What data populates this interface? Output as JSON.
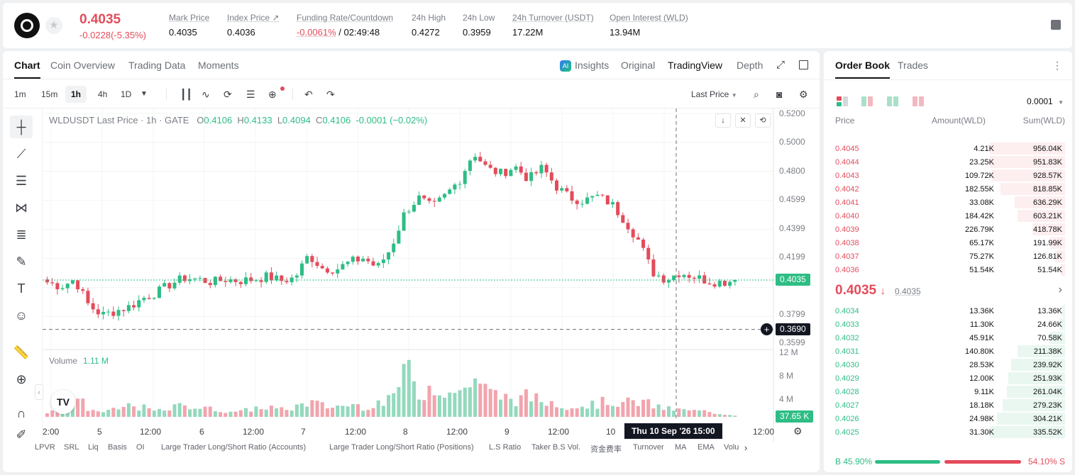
{
  "ticker": {
    "last_price": "0.4035",
    "change": "-0.0228(-5.35%)",
    "stats": [
      {
        "label": "Mark Price",
        "value": "0.4035"
      },
      {
        "label": "Index Price ↗",
        "value": "0.4036"
      },
      {
        "label": "Funding Rate/Countdown",
        "value_red": "-0.0061%",
        "value": " / 02:49:48"
      },
      {
        "label": "24h High",
        "value": "0.4272"
      },
      {
        "label": "24h Low",
        "value": "0.3959"
      },
      {
        "label": "24h Turnover (USDT)",
        "value": "17.22M"
      },
      {
        "label": "Open Interest (WLD)",
        "value": "13.94M"
      }
    ]
  },
  "chart_tabs": {
    "left": [
      "Chart",
      "Coin Overview",
      "Trading Data",
      "Moments"
    ],
    "right": [
      "Insights",
      "Original",
      "TradingView",
      "Depth"
    ],
    "ai_badge": "AI"
  },
  "toolbar": {
    "timeframes": [
      "1m",
      "15m",
      "1h",
      "4h",
      "1D"
    ],
    "active_timeframe": "1h",
    "price_type": "Last Price"
  },
  "chart_legend": {
    "symbol": "WLDUSDT Last Price · 1h · GATE",
    "o_label": "O",
    "o": "0.4106",
    "h_label": "H",
    "h": "0.4133",
    "l_label": "L",
    "l": "0.4094",
    "c_label": "C",
    "c": "0.4106",
    "change": "-0.0001 (−0.02%)",
    "volume_label": "Volume",
    "volume_value": "1.11 M"
  },
  "chart_data": {
    "type": "candlestick",
    "symbol": "WLDUSDT",
    "interval": "1h",
    "price_axis_ticks": [
      "0.5200",
      "0.5000",
      "0.4800",
      "0.4599",
      "0.4399",
      "0.4199",
      "0.3799",
      "0.3599"
    ],
    "volume_axis_ticks": [
      "12 M",
      "8 M",
      "4 M"
    ],
    "ylim": [
      0.3599,
      0.52
    ],
    "current_price": "0.4035",
    "crosshair_price": "0.3690",
    "crosshair_time": "Thu 10 Sep '26   15:00",
    "current_volume": "37.65 K",
    "x_ticks": [
      "2:00",
      "5",
      "12:00",
      "6",
      "12:00",
      "7",
      "12:00",
      "8",
      "12:00",
      "9",
      "12:00",
      "10",
      "12:00"
    ],
    "close_path": [
      0.402,
      0.399,
      0.404,
      0.386,
      0.379,
      0.382,
      0.385,
      0.391,
      0.395,
      0.401,
      0.405,
      0.404,
      0.402,
      0.404,
      0.403,
      0.404,
      0.406,
      0.403,
      0.405,
      0.421,
      0.412,
      0.411,
      0.416,
      0.419,
      0.412,
      0.426,
      0.451,
      0.461,
      0.454,
      0.463,
      0.474,
      0.493,
      0.481,
      0.478,
      0.483,
      0.474,
      0.482,
      0.469,
      0.461,
      0.459,
      0.462,
      0.457,
      0.445,
      0.431,
      0.409,
      0.404,
      0.409,
      0.406,
      0.403,
      0.402,
      0.4035
    ],
    "volume_path": [
      1.1,
      0.8,
      4.2,
      1.5,
      0.9,
      1.3,
      2.2,
      1.7,
      1.0,
      1.6,
      2.3,
      1.8,
      1.4,
      1.2,
      0.9,
      1.6,
      1.9,
      1.3,
      1.8,
      2.8,
      2.1,
      1.9,
      2.4,
      1.9,
      2.7,
      3.0,
      9.5,
      4.0,
      6.2,
      5.1,
      4.4,
      7.8,
      4.6,
      3.9,
      3.2,
      3.9,
      2.9,
      2.7,
      2.0,
      2.1,
      2.5,
      3.0,
      2.6,
      2.9,
      2.2,
      1.5,
      1.3,
      1.1,
      1.0,
      0.6,
      0.3
    ],
    "grid": true
  },
  "indicator_tabs": [
    "LPVR",
    "SRL",
    "Liq",
    "Basis",
    "OI",
    "Large Trader Long/Short Ratio (Accounts)",
    "Large Trader Long/Short Ratio (Positions)",
    "L.S Ratio",
    "Taker B.S Vol.",
    "资金费率",
    "Turnover",
    "MA",
    "EMA",
    "Volu"
  ],
  "orderbook": {
    "tabs": [
      "Order Book",
      "Trades"
    ],
    "precision": "0.0001",
    "headers": [
      "Price",
      "Amount(WLD)",
      "Sum(WLD)"
    ],
    "asks": [
      {
        "price": "0.4045",
        "amount": "4.21K",
        "sum": "956.04K",
        "depth": 1.0
      },
      {
        "price": "0.4044",
        "amount": "23.25K",
        "sum": "951.83K",
        "depth": 0.996
      },
      {
        "price": "0.4043",
        "amount": "109.72K",
        "sum": "928.57K",
        "depth": 0.971
      },
      {
        "price": "0.4042",
        "amount": "182.55K",
        "sum": "818.85K",
        "depth": 0.857
      },
      {
        "price": "0.4041",
        "amount": "33.08K",
        "sum": "636.29K",
        "depth": 0.666
      },
      {
        "price": "0.4040",
        "amount": "184.42K",
        "sum": "603.21K",
        "depth": 0.631
      },
      {
        "price": "0.4039",
        "amount": "226.79K",
        "sum": "418.78K",
        "depth": 0.438
      },
      {
        "price": "0.4038",
        "amount": "65.17K",
        "sum": "191.99K",
        "depth": 0.201
      },
      {
        "price": "0.4037",
        "amount": "75.27K",
        "sum": "126.81K",
        "depth": 0.133
      },
      {
        "price": "0.4036",
        "amount": "51.54K",
        "sum": "51.54K",
        "depth": 0.054
      }
    ],
    "mid_price": "0.4035",
    "mid_arrow": "↓",
    "mark_price": "0.4035",
    "bids": [
      {
        "price": "0.4034",
        "amount": "13.36K",
        "sum": "13.36K",
        "depth": 0.04
      },
      {
        "price": "0.4033",
        "amount": "11.30K",
        "sum": "24.66K",
        "depth": 0.073
      },
      {
        "price": "0.4032",
        "amount": "45.91K",
        "sum": "70.58K",
        "depth": 0.21
      },
      {
        "price": "0.4031",
        "amount": "140.80K",
        "sum": "211.38K",
        "depth": 0.63
      },
      {
        "price": "0.4030",
        "amount": "28.53K",
        "sum": "239.92K",
        "depth": 0.715
      },
      {
        "price": "0.4029",
        "amount": "12.00K",
        "sum": "251.93K",
        "depth": 0.751
      },
      {
        "price": "0.4028",
        "amount": "9.11K",
        "sum": "261.04K",
        "depth": 0.778
      },
      {
        "price": "0.4027",
        "amount": "18.18K",
        "sum": "279.23K",
        "depth": 0.832
      },
      {
        "price": "0.4026",
        "amount": "24.98K",
        "sum": "304.21K",
        "depth": 0.907
      },
      {
        "price": "0.4025",
        "amount": "31.30K",
        "sum": "335.52K",
        "depth": 1.0
      }
    ],
    "buy_ratio": "B 45.90%",
    "sell_ratio": "54.10% S",
    "buy_fraction": 0.459
  },
  "colors": {
    "up": "#2ebd85",
    "down": "#e34c5b",
    "up_light": "#e9f7f0",
    "down_light": "#fdeef0"
  }
}
